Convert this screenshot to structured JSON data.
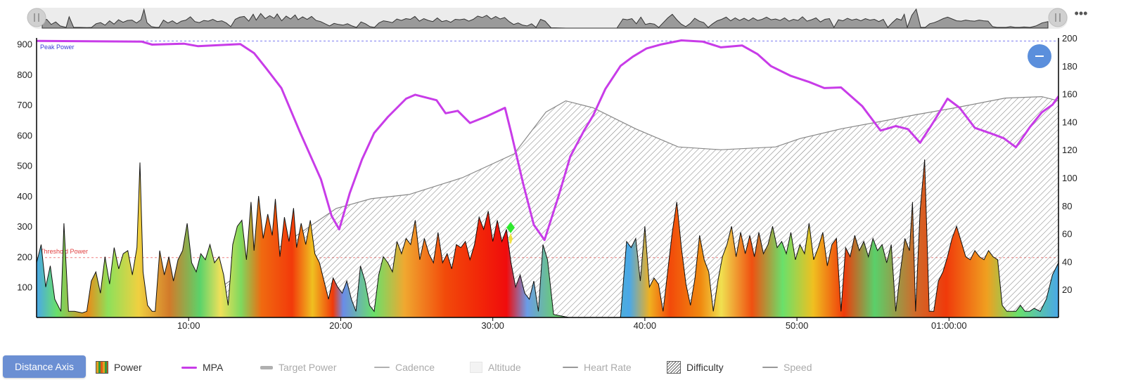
{
  "overview": {
    "more_label": "•••"
  },
  "y_left_ticks": [
    "900",
    "800",
    "700",
    "600",
    "500",
    "400",
    "300",
    "200",
    "100"
  ],
  "y_right_ticks": [
    "200",
    "180",
    "160",
    "140",
    "120",
    "100",
    "80",
    "60",
    "40",
    "20"
  ],
  "x_ticks": [
    "10:00",
    "20:00",
    "30:00",
    "40:00",
    "50:00",
    "01:00:00"
  ],
  "annotations": {
    "peak_power": "Peak Power",
    "threshold_power": "Threshold Power"
  },
  "colors": {
    "mpa": "#c83ce8",
    "peak_line": "#7b7bf0",
    "threshold_line": "#f08080",
    "accent_button": "#6b8fd3"
  },
  "legend": {
    "axis_button": "Distance Axis",
    "items": [
      {
        "key": "power",
        "label": "Power",
        "active": true
      },
      {
        "key": "mpa",
        "label": "MPA",
        "active": true
      },
      {
        "key": "target_power",
        "label": "Target Power",
        "active": false
      },
      {
        "key": "cadence",
        "label": "Cadence",
        "active": false
      },
      {
        "key": "altitude",
        "label": "Altitude",
        "active": false
      },
      {
        "key": "heart_rate",
        "label": "Heart Rate",
        "active": false
      },
      {
        "key": "difficulty",
        "label": "Difficulty",
        "active": true
      },
      {
        "key": "speed",
        "label": "Speed",
        "active": false
      }
    ]
  },
  "chart_data": {
    "type": "area",
    "x_unit": "minutes",
    "xlim": [
      0,
      67.2
    ],
    "ylim_left": [
      0,
      920
    ],
    "ylim_right": [
      0,
      200
    ],
    "peak_power": 910,
    "threshold_power": 197,
    "series": [
      {
        "name": "Power",
        "axis": "left",
        "points": [
          [
            0,
            180
          ],
          [
            0.3,
            240
          ],
          [
            0.6,
            100
          ],
          [
            0.9,
            170
          ],
          [
            1.2,
            60
          ],
          [
            1.6,
            20
          ],
          [
            1.8,
            310
          ],
          [
            2.1,
            20
          ],
          [
            2.5,
            20
          ],
          [
            3.0,
            15
          ],
          [
            3.3,
            20
          ],
          [
            3.6,
            120
          ],
          [
            3.9,
            150
          ],
          [
            4.2,
            80
          ],
          [
            4.5,
            200
          ],
          [
            4.8,
            110
          ],
          [
            5.1,
            230
          ],
          [
            5.4,
            160
          ],
          [
            5.7,
            210
          ],
          [
            6.0,
            220
          ],
          [
            6.3,
            140
          ],
          [
            6.6,
            230
          ],
          [
            6.8,
            510
          ],
          [
            7.0,
            150
          ],
          [
            7.3,
            40
          ],
          [
            7.6,
            20
          ],
          [
            7.8,
            20
          ],
          [
            8.1,
            220
          ],
          [
            8.4,
            140
          ],
          [
            8.7,
            200
          ],
          [
            9.0,
            120
          ],
          [
            9.3,
            190
          ],
          [
            9.6,
            220
          ],
          [
            9.9,
            310
          ],
          [
            10.2,
            180
          ],
          [
            10.5,
            150
          ],
          [
            10.8,
            210
          ],
          [
            11.1,
            190
          ],
          [
            11.4,
            240
          ],
          [
            11.7,
            180
          ],
          [
            12.0,
            200
          ],
          [
            12.3,
            140
          ],
          [
            12.6,
            40
          ],
          [
            12.9,
            240
          ],
          [
            13.2,
            300
          ],
          [
            13.5,
            320
          ],
          [
            13.8,
            190
          ],
          [
            14.1,
            380
          ],
          [
            14.3,
            220
          ],
          [
            14.6,
            400
          ],
          [
            14.9,
            260
          ],
          [
            15.2,
            340
          ],
          [
            15.5,
            270
          ],
          [
            15.7,
            390
          ],
          [
            16.0,
            200
          ],
          [
            16.3,
            330
          ],
          [
            16.6,
            250
          ],
          [
            16.9,
            360
          ],
          [
            17.1,
            230
          ],
          [
            17.4,
            310
          ],
          [
            17.7,
            240
          ],
          [
            18.0,
            320
          ],
          [
            18.3,
            210
          ],
          [
            18.6,
            180
          ],
          [
            18.9,
            120
          ],
          [
            19.2,
            60
          ],
          [
            19.5,
            130
          ],
          [
            19.8,
            100
          ],
          [
            20.1,
            80
          ],
          [
            20.4,
            120
          ],
          [
            20.7,
            60
          ],
          [
            21.0,
            20
          ],
          [
            21.3,
            170
          ],
          [
            21.6,
            120
          ],
          [
            21.9,
            40
          ],
          [
            22.2,
            20
          ],
          [
            22.5,
            140
          ],
          [
            22.8,
            200
          ],
          [
            23.1,
            180
          ],
          [
            23.4,
            150
          ],
          [
            23.7,
            250
          ],
          [
            24.0,
            210
          ],
          [
            24.3,
            260
          ],
          [
            24.6,
            240
          ],
          [
            24.9,
            320
          ],
          [
            25.2,
            190
          ],
          [
            25.5,
            260
          ],
          [
            25.8,
            210
          ],
          [
            26.1,
            180
          ],
          [
            26.4,
            280
          ],
          [
            26.7,
            180
          ],
          [
            27.0,
            210
          ],
          [
            27.3,
            160
          ],
          [
            27.6,
            240
          ],
          [
            27.9,
            230
          ],
          [
            28.2,
            250
          ],
          [
            28.5,
            190
          ],
          [
            28.8,
            240
          ],
          [
            29.1,
            330
          ],
          [
            29.4,
            290
          ],
          [
            29.7,
            350
          ],
          [
            30.0,
            250
          ],
          [
            30.3,
            320
          ],
          [
            30.6,
            250
          ],
          [
            30.9,
            290
          ],
          [
            31.2,
            180
          ],
          [
            31.5,
            100
          ],
          [
            31.8,
            140
          ],
          [
            32.1,
            80
          ],
          [
            32.4,
            60
          ],
          [
            32.7,
            120
          ],
          [
            33.0,
            20
          ],
          [
            33.3,
            240
          ],
          [
            33.6,
            190
          ],
          [
            34.0,
            10
          ],
          [
            35.0,
            0
          ],
          [
            38.4,
            0
          ],
          [
            38.8,
            250
          ],
          [
            39.1,
            230
          ],
          [
            39.4,
            260
          ],
          [
            39.7,
            120
          ],
          [
            40.0,
            300
          ],
          [
            40.3,
            100
          ],
          [
            40.6,
            130
          ],
          [
            40.9,
            110
          ],
          [
            41.2,
            20
          ],
          [
            41.5,
            150
          ],
          [
            41.8,
            280
          ],
          [
            42.1,
            380
          ],
          [
            42.4,
            230
          ],
          [
            42.7,
            110
          ],
          [
            43.0,
            40
          ],
          [
            43.3,
            130
          ],
          [
            43.6,
            270
          ],
          [
            43.9,
            190
          ],
          [
            44.2,
            150
          ],
          [
            44.5,
            20
          ],
          [
            44.8,
            120
          ],
          [
            45.1,
            200
          ],
          [
            45.4,
            240
          ],
          [
            45.7,
            300
          ],
          [
            46.0,
            200
          ],
          [
            46.3,
            280
          ],
          [
            46.6,
            210
          ],
          [
            46.9,
            270
          ],
          [
            47.2,
            200
          ],
          [
            47.5,
            280
          ],
          [
            47.8,
            210
          ],
          [
            48.1,
            240
          ],
          [
            48.4,
            300
          ],
          [
            48.7,
            230
          ],
          [
            49.0,
            250
          ],
          [
            49.3,
            210
          ],
          [
            49.6,
            280
          ],
          [
            49.9,
            190
          ],
          [
            50.2,
            240
          ],
          [
            50.5,
            210
          ],
          [
            50.8,
            310
          ],
          [
            51.1,
            190
          ],
          [
            51.4,
            230
          ],
          [
            51.7,
            280
          ],
          [
            52.0,
            170
          ],
          [
            52.3,
            240
          ],
          [
            52.6,
            260
          ],
          [
            52.9,
            20
          ],
          [
            53.2,
            230
          ],
          [
            53.5,
            200
          ],
          [
            53.8,
            270
          ],
          [
            54.1,
            220
          ],
          [
            54.4,
            250
          ],
          [
            54.7,
            200
          ],
          [
            55.0,
            260
          ],
          [
            55.3,
            220
          ],
          [
            55.6,
            240
          ],
          [
            55.9,
            180
          ],
          [
            56.2,
            240
          ],
          [
            56.5,
            20
          ],
          [
            56.8,
            150
          ],
          [
            57.1,
            260
          ],
          [
            57.4,
            220
          ],
          [
            57.6,
            380
          ],
          [
            57.8,
            20
          ],
          [
            58.1,
            350
          ],
          [
            58.4,
            520
          ],
          [
            58.7,
            20
          ],
          [
            59.0,
            20
          ],
          [
            59.3,
            120
          ],
          [
            59.6,
            150
          ],
          [
            59.9,
            200
          ],
          [
            60.2,
            260
          ],
          [
            60.5,
            300
          ],
          [
            60.8,
            250
          ],
          [
            61.1,
            200
          ],
          [
            61.4,
            190
          ],
          [
            61.7,
            220
          ],
          [
            62.0,
            200
          ],
          [
            62.3,
            190
          ],
          [
            62.6,
            220
          ],
          [
            62.9,
            200
          ],
          [
            63.2,
            190
          ],
          [
            63.5,
            40
          ],
          [
            63.8,
            20
          ],
          [
            64.1,
            20
          ],
          [
            64.4,
            20
          ],
          [
            64.7,
            40
          ],
          [
            65.0,
            20
          ],
          [
            65.3,
            20
          ],
          [
            65.6,
            30
          ],
          [
            66.0,
            20
          ],
          [
            66.4,
            60
          ],
          [
            66.8,
            140
          ],
          [
            67.2,
            180
          ]
        ]
      },
      {
        "name": "MPA",
        "axis": "left",
        "points": [
          [
            0,
            910
          ],
          [
            6.9,
            908
          ],
          [
            7.6,
            898
          ],
          [
            9.7,
            901
          ],
          [
            10.6,
            893
          ],
          [
            13.4,
            900
          ],
          [
            14.3,
            870
          ],
          [
            15.1,
            820
          ],
          [
            16.1,
            755
          ],
          [
            17.3,
            612
          ],
          [
            18.7,
            455
          ],
          [
            19.4,
            334
          ],
          [
            19.9,
            290
          ],
          [
            20.6,
            410
          ],
          [
            21.4,
            520
          ],
          [
            22.2,
            607
          ],
          [
            23.1,
            660
          ],
          [
            24.3,
            720
          ],
          [
            24.9,
            733
          ],
          [
            26.3,
            715
          ],
          [
            26.9,
            672
          ],
          [
            27.7,
            680
          ],
          [
            28.5,
            640
          ],
          [
            29.6,
            662
          ],
          [
            30.8,
            690
          ],
          [
            31.2,
            610
          ],
          [
            32.0,
            440
          ],
          [
            32.7,
            305
          ],
          [
            33.4,
            255
          ],
          [
            34.3,
            395
          ],
          [
            35.1,
            530
          ],
          [
            36.0,
            615
          ],
          [
            36.6,
            665
          ],
          [
            37.4,
            752
          ],
          [
            38.4,
            828
          ],
          [
            39.2,
            858
          ],
          [
            40.1,
            885
          ],
          [
            41.1,
            899
          ],
          [
            42.4,
            912
          ],
          [
            43.8,
            908
          ],
          [
            45.0,
            889
          ],
          [
            46.4,
            895
          ],
          [
            47.4,
            867
          ],
          [
            48.3,
            827
          ],
          [
            49.6,
            795
          ],
          [
            50.8,
            775
          ],
          [
            51.8,
            755
          ],
          [
            52.9,
            757
          ],
          [
            54.3,
            695
          ],
          [
            55.5,
            615
          ],
          [
            56.5,
            630
          ],
          [
            57.3,
            620
          ],
          [
            58.1,
            575
          ],
          [
            59.0,
            645
          ],
          [
            59.9,
            720
          ],
          [
            60.7,
            690
          ],
          [
            61.7,
            624
          ],
          [
            62.8,
            605
          ],
          [
            63.6,
            590
          ],
          [
            64.4,
            560
          ],
          [
            65.3,
            625
          ],
          [
            66.1,
            675
          ],
          [
            66.8,
            700
          ],
          [
            67.2,
            728
          ]
        ]
      },
      {
        "name": "Difficulty",
        "axis": "right",
        "points": [
          [
            0,
            2
          ],
          [
            9.6,
            3
          ],
          [
            19.7,
            78
          ],
          [
            22.0,
            85
          ],
          [
            24.5,
            88
          ],
          [
            28.0,
            100
          ],
          [
            31.4,
            117
          ],
          [
            33.5,
            147
          ],
          [
            34.8,
            155
          ],
          [
            36.6,
            150
          ],
          [
            39.4,
            135
          ],
          [
            42.2,
            122
          ],
          [
            45.0,
            120
          ],
          [
            48.6,
            122
          ],
          [
            50.2,
            128
          ],
          [
            52.9,
            135
          ],
          [
            55.4,
            140
          ],
          [
            57.8,
            145
          ],
          [
            60.4,
            150
          ],
          [
            63.7,
            157
          ],
          [
            66.1,
            158
          ],
          [
            67.2,
            155
          ]
        ]
      }
    ]
  }
}
